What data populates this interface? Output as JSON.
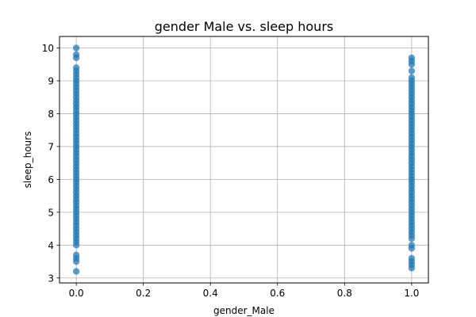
{
  "chart_data": {
    "type": "scatter",
    "title": "gender Male vs. sleep hours",
    "xlabel": "gender_Male",
    "ylabel": "sleep_hours",
    "xlim": [
      -0.05,
      1.05
    ],
    "ylim": [
      2.85,
      10.35
    ],
    "xticks": [
      0.0,
      0.2,
      0.4,
      0.6,
      0.8,
      1.0
    ],
    "xtick_labels": [
      "0.0",
      "0.2",
      "0.4",
      "0.6",
      "0.8",
      "1.0"
    ],
    "yticks": [
      3,
      4,
      5,
      6,
      7,
      8,
      9,
      10
    ],
    "ytick_labels": [
      "3",
      "4",
      "5",
      "6",
      "7",
      "8",
      "9",
      "10"
    ],
    "grid": true,
    "marker_color": "#1f77b4",
    "series": [
      {
        "x_value": 0.0,
        "y": [
          3.2,
          3.5,
          3.6,
          3.7,
          4.0,
          4.1,
          4.2,
          4.3,
          4.4,
          4.5,
          4.6,
          4.7,
          4.8,
          4.9,
          5.0,
          5.1,
          5.2,
          5.3,
          5.4,
          5.5,
          5.6,
          5.7,
          5.8,
          5.9,
          6.0,
          6.1,
          6.2,
          6.3,
          6.4,
          6.5,
          6.6,
          6.7,
          6.8,
          6.9,
          7.0,
          7.1,
          7.2,
          7.3,
          7.4,
          7.5,
          7.6,
          7.7,
          7.8,
          7.9,
          8.0,
          8.1,
          8.2,
          8.3,
          8.4,
          8.5,
          8.6,
          8.7,
          8.8,
          8.9,
          9.0,
          9.1,
          9.2,
          9.3,
          9.4,
          9.7,
          9.8,
          10.0
        ]
      },
      {
        "x_value": 1.0,
        "y": [
          3.3,
          3.4,
          3.5,
          3.6,
          3.9,
          4.0,
          4.2,
          4.3,
          4.4,
          4.5,
          4.6,
          4.7,
          4.8,
          4.9,
          5.0,
          5.1,
          5.2,
          5.3,
          5.4,
          5.5,
          5.6,
          5.7,
          5.8,
          5.9,
          6.0,
          6.1,
          6.2,
          6.3,
          6.4,
          6.5,
          6.6,
          6.7,
          6.8,
          6.9,
          7.0,
          7.1,
          7.2,
          7.3,
          7.4,
          7.5,
          7.6,
          7.7,
          7.8,
          7.9,
          8.0,
          8.1,
          8.2,
          8.3,
          8.4,
          8.5,
          8.6,
          8.7,
          8.8,
          8.9,
          9.0,
          9.1,
          9.3,
          9.5,
          9.6,
          9.7
        ]
      }
    ]
  }
}
